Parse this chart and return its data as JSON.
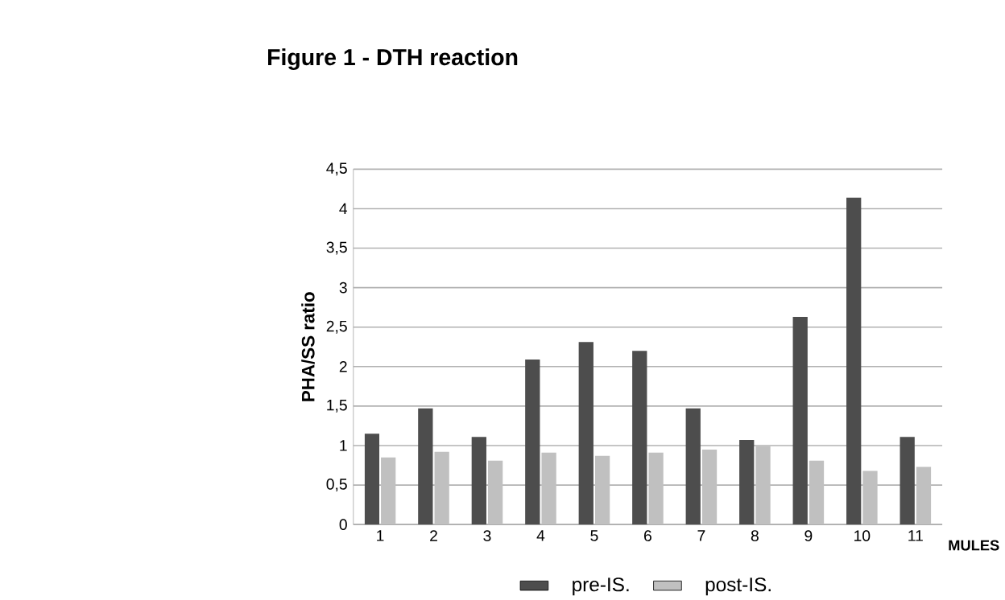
{
  "chart_data": {
    "type": "bar",
    "title": "Figure 1 - DTH reaction",
    "xlabel": "MULES",
    "ylabel": "PHA/SS ratio",
    "categories": [
      "1",
      "2",
      "3",
      "4",
      "5",
      "6",
      "7",
      "8",
      "9",
      "10",
      "11"
    ],
    "series": [
      {
        "name": "pre-IS.",
        "color": "#4d4d4d",
        "values": [
          1.15,
          1.47,
          1.11,
          2.09,
          2.31,
          2.2,
          1.47,
          1.07,
          2.63,
          4.14,
          1.11
        ]
      },
      {
        "name": "post-IS.",
        "color": "#c0c0c0",
        "values": [
          0.85,
          0.92,
          0.81,
          0.91,
          0.87,
          0.91,
          0.95,
          0.99,
          0.81,
          0.68,
          0.73
        ]
      }
    ],
    "ylim": [
      0,
      4.5
    ],
    "yticks": [
      0,
      {
        "value": 0.5,
        "label": "0,5"
      },
      1,
      {
        "value": 1.5,
        "label": "1,5"
      },
      2,
      {
        "value": 2.5,
        "label": "2,5"
      },
      3,
      {
        "value": 3.5,
        "label": "3,5"
      },
      4,
      {
        "value": 4.5,
        "label": "4,5"
      }
    ],
    "grid": "y",
    "legend": "bottom"
  }
}
